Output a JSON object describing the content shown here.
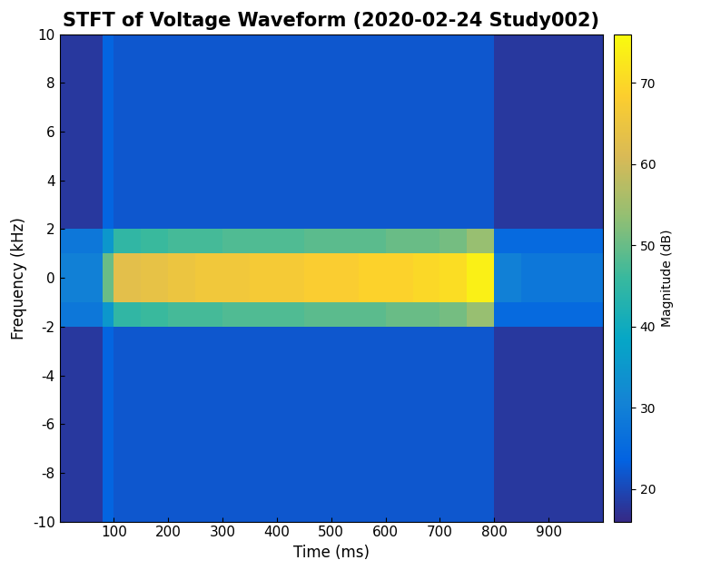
{
  "chart_data": {
    "type": "heatmap",
    "title": "STFT of Voltage Waveform (2020-02-24 Study002)",
    "x_label": "Time (ms)",
    "y_label": "Frequency (kHz)",
    "colorbar_label": "Magnitude (dB)",
    "xlim": [
      0,
      1000
    ],
    "xticks": [
      100,
      200,
      300,
      400,
      500,
      600,
      700,
      800,
      900
    ],
    "ylim": [
      -10,
      10
    ],
    "yticks": [
      -10,
      -8,
      -6,
      -4,
      -2,
      0,
      2,
      4,
      6,
      8,
      10
    ],
    "zlim": [
      16,
      76
    ],
    "zticks": [
      20,
      30,
      40,
      50,
      60,
      70
    ],
    "x_edges": [
      0,
      40,
      80,
      100,
      150,
      200,
      250,
      300,
      350,
      400,
      450,
      500,
      550,
      600,
      650,
      700,
      750,
      800,
      850,
      900,
      950,
      1000
    ],
    "y_edges": [
      -10,
      -8,
      -6,
      -4,
      -2,
      -1,
      0,
      1,
      2,
      4,
      6,
      8,
      10
    ],
    "cells": [
      [
        18,
        18,
        24,
        22,
        22,
        22,
        22,
        22,
        22,
        22,
        22,
        22,
        22,
        22,
        22,
        22,
        22,
        18,
        18,
        18,
        18
      ],
      [
        18,
        18,
        24,
        22,
        22,
        22,
        22,
        22,
        22,
        22,
        22,
        22,
        22,
        22,
        22,
        22,
        22,
        18,
        18,
        18,
        18
      ],
      [
        18,
        18,
        24,
        22,
        22,
        22,
        22,
        22,
        22,
        22,
        22,
        22,
        22,
        22,
        22,
        22,
        22,
        18,
        18,
        18,
        18
      ],
      [
        18,
        18,
        24,
        22,
        22,
        22,
        22,
        22,
        22,
        22,
        22,
        22,
        22,
        22,
        22,
        22,
        22,
        18,
        18,
        18,
        18
      ],
      [
        28,
        28,
        35,
        45,
        46,
        47,
        47,
        48,
        48,
        48,
        49,
        49,
        49,
        50,
        50,
        51,
        54,
        25,
        25,
        25,
        25
      ],
      [
        30,
        30,
        50,
        63,
        64,
        65,
        66,
        66,
        67,
        67,
        68,
        68,
        69,
        69,
        70,
        71,
        74,
        30,
        28,
        28,
        28
      ],
      [
        30,
        30,
        50,
        63,
        64,
        65,
        66,
        66,
        67,
        67,
        68,
        68,
        69,
        69,
        70,
        71,
        74,
        30,
        28,
        28,
        28
      ],
      [
        28,
        28,
        35,
        45,
        46,
        47,
        47,
        48,
        48,
        48,
        49,
        49,
        49,
        50,
        50,
        51,
        54,
        25,
        25,
        25,
        25
      ],
      [
        18,
        18,
        24,
        22,
        22,
        22,
        22,
        22,
        22,
        22,
        22,
        22,
        22,
        22,
        22,
        22,
        22,
        18,
        18,
        18,
        18
      ],
      [
        18,
        18,
        24,
        22,
        22,
        22,
        22,
        22,
        22,
        22,
        22,
        22,
        22,
        22,
        22,
        22,
        22,
        18,
        18,
        18,
        18
      ],
      [
        18,
        18,
        24,
        22,
        22,
        22,
        22,
        22,
        22,
        22,
        22,
        22,
        22,
        22,
        22,
        22,
        22,
        18,
        18,
        18,
        18
      ],
      [
        18,
        18,
        24,
        22,
        22,
        22,
        22,
        22,
        22,
        22,
        22,
        22,
        22,
        22,
        22,
        22,
        22,
        18,
        18,
        18,
        18
      ]
    ]
  }
}
